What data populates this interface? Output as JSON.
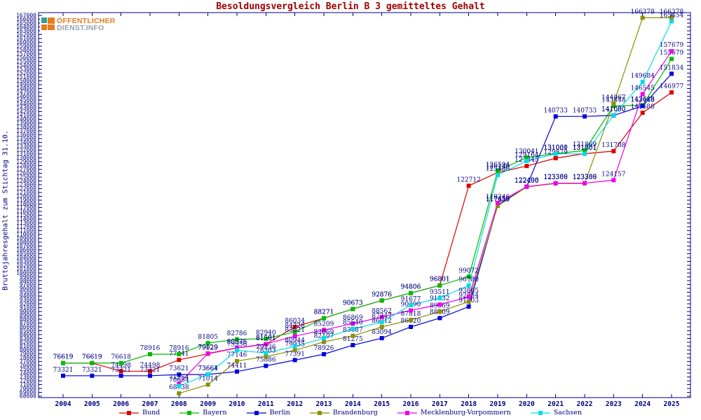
{
  "logo": {
    "line1": "ÖFFENTLICHER",
    "line2": "DIENST.INFO"
  },
  "chart_data": {
    "type": "line",
    "title": "Besoldungsvergleich Berlin B 3 gemitteltes Gehalt",
    "ylabel": "Bruttojahresgehalt zum Stichtag 31.10.",
    "xlabel": "",
    "x": [
      2004,
      2005,
      2006,
      2007,
      2008,
      2009,
      2010,
      2011,
      2012,
      2013,
      2014,
      2015,
      2016,
      2017,
      2018,
      2019,
      2020,
      2021,
      2022,
      2023,
      2024,
      2025
    ],
    "ylim": [
      68000,
      167000
    ],
    "ytick_step": 1000,
    "grid": false,
    "legend_position": "bottom",
    "point_labels": true,
    "axis_color": "#000082",
    "title_color": "#a00000",
    "series": [
      {
        "name": "Bund",
        "color": "#dd0000",
        "values": [
          76619,
          76619,
          74498,
          74498,
          77441,
          79029,
          80535,
          81501,
          86034,
          88271,
          90673,
          92876,
          94806,
          96801,
          122712,
          126146,
          127845,
          129879,
          131061,
          131708,
          141688,
          146977
        ]
      },
      {
        "name": "Bayern",
        "color": "#00bb00",
        "values": [
          76619,
          76619,
          76618,
          78916,
          78916,
          81805,
          82786,
          82940,
          84728,
          88271,
          90673,
          92876,
          94806,
          96801,
          99072,
          126594,
          130041,
          131060,
          131869,
          143448,
          143648,
          155679
        ]
      },
      {
        "name": "Berlin",
        "color": "#0000dd",
        "values": [
          73321,
          73321,
          73321,
          73321,
          73621,
          73664,
          74411,
          75886,
          77391,
          78926,
          81275,
          83094,
          86020,
          88309,
          91303,
          117659,
          122496,
          140733,
          140733,
          141000,
          143448,
          151834
        ]
      },
      {
        "name": "Brandenburg",
        "color": "#8f8f00",
        "values": [
          null,
          null,
          null,
          null,
          68738,
          71014,
          77146,
          78303,
          79935,
          82107,
          83687,
          86012,
          87818,
          89969,
          92584,
          117459,
          122400,
          123306,
          123306,
          144067,
          166378,
          166378
        ]
      },
      {
        "name": "Mecklenburg-Vorpommern",
        "color": "#ee00ee",
        "values": [
          null,
          null,
          null,
          null,
          71254,
          79129,
          80576,
          81561,
          83621,
          85209,
          86869,
          88562,
          90290,
          91832,
          93805,
          118246,
          122490,
          123389,
          123389,
          124157,
          146545,
          157679
        ]
      },
      {
        "name": "Sachsen",
        "color": "#00dde6",
        "values": [
          null,
          null,
          null,
          null,
          70654,
          73661,
          79936,
          79236,
          80944,
          83069,
          85540,
          87247,
          91677,
          93511,
          96780,
          125486,
          129164,
          131001,
          131001,
          141050,
          149684,
          165454
        ]
      }
    ]
  }
}
